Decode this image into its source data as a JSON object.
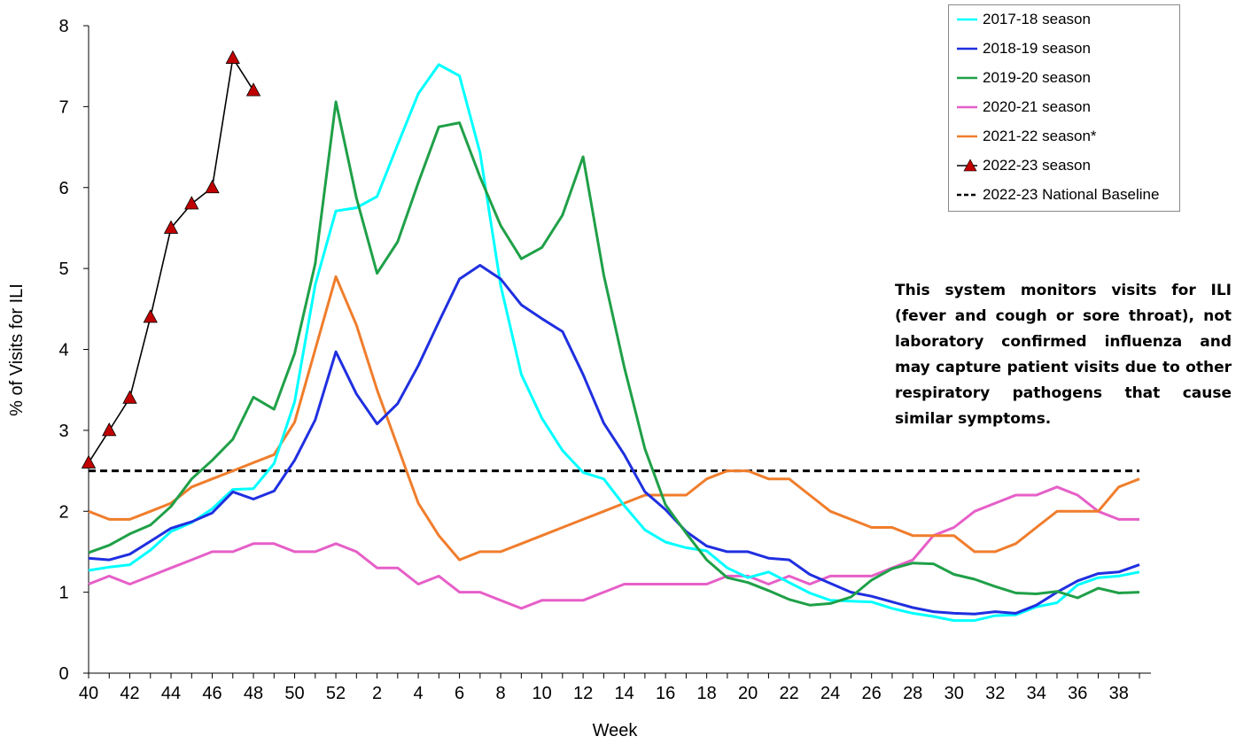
{
  "chart_data": {
    "type": "line",
    "xlabel": "Week",
    "ylabel": "% of Visits for ILI",
    "ylim": [
      0,
      8
    ],
    "yticks": [
      "0",
      "1",
      "2",
      "3",
      "4",
      "5",
      "6",
      "7",
      "8"
    ],
    "week_order": [
      40,
      41,
      42,
      43,
      44,
      45,
      46,
      47,
      48,
      49,
      50,
      51,
      52,
      1,
      2,
      3,
      4,
      5,
      6,
      7,
      8,
      9,
      10,
      11,
      12,
      13,
      14,
      15,
      16,
      17,
      18,
      19,
      20,
      21,
      22,
      23,
      24,
      25,
      26,
      27,
      28,
      29,
      30,
      31,
      32,
      33,
      34,
      35,
      36,
      37,
      38,
      39
    ],
    "xtick_labels": [
      "40",
      "42",
      "44",
      "46",
      "48",
      "50",
      "52",
      "2",
      "4",
      "6",
      "8",
      "10",
      "12",
      "14",
      "16",
      "18",
      "20",
      "22",
      "24",
      "26",
      "28",
      "30",
      "32",
      "34",
      "36",
      "38"
    ],
    "legend_position": "top-right",
    "series": [
      {
        "name": "2017-18 season",
        "color": "#00ffff",
        "marker": "none",
        "dashed": false,
        "values": [
          1.27,
          1.31,
          1.34,
          1.52,
          1.75,
          1.86,
          2.03,
          2.27,
          2.28,
          2.59,
          3.35,
          4.8,
          5.71,
          5.75,
          5.89,
          6.53,
          7.16,
          7.52,
          7.38,
          6.43,
          4.79,
          3.69,
          3.15,
          2.75,
          2.48,
          2.4,
          2.07,
          1.77,
          1.62,
          1.55,
          1.51,
          1.3,
          1.18,
          1.25,
          1.12,
          0.99,
          0.9,
          0.89,
          0.88,
          0.8,
          0.74,
          0.7,
          0.65,
          0.65,
          0.71,
          0.72,
          0.82,
          0.87,
          1.09,
          1.18,
          1.2,
          1.25
        ]
      },
      {
        "name": "2018-19 season",
        "color": "#1f2fe0",
        "marker": "none",
        "dashed": false,
        "values": [
          1.42,
          1.4,
          1.47,
          1.63,
          1.79,
          1.87,
          1.98,
          2.24,
          2.15,
          2.25,
          2.63,
          3.13,
          3.97,
          3.45,
          3.08,
          3.33,
          3.8,
          4.34,
          4.87,
          5.04,
          4.87,
          4.55,
          4.38,
          4.22,
          3.69,
          3.09,
          2.7,
          2.24,
          2.02,
          1.75,
          1.57,
          1.5,
          1.5,
          1.42,
          1.4,
          1.22,
          1.11,
          1.0,
          0.95,
          0.88,
          0.81,
          0.76,
          0.74,
          0.73,
          0.76,
          0.74,
          0.84,
          1.0,
          1.14,
          1.23,
          1.25,
          1.34
        ]
      },
      {
        "name": "2019-20 season",
        "color": "#1fa048",
        "marker": "none",
        "dashed": false,
        "values": [
          1.49,
          1.58,
          1.72,
          1.83,
          2.06,
          2.4,
          2.63,
          2.89,
          3.41,
          3.26,
          3.95,
          5.06,
          7.06,
          5.87,
          4.94,
          5.33,
          6.06,
          6.75,
          6.8,
          6.13,
          5.53,
          5.12,
          5.26,
          5.66,
          6.38,
          4.92,
          3.78,
          2.77,
          2.08,
          1.73,
          1.4,
          1.18,
          1.12,
          1.02,
          0.91,
          0.84,
          0.86,
          0.94,
          1.15,
          1.29,
          1.36,
          1.35,
          1.22,
          1.16,
          1.07,
          0.99,
          0.98,
          1.01,
          0.93,
          1.05,
          0.99,
          1.0
        ]
      },
      {
        "name": "2020-21 season",
        "color": "#e65fc8",
        "marker": "none",
        "dashed": false,
        "values": [
          1.1,
          1.2,
          1.1,
          1.2,
          1.3,
          1.4,
          1.5,
          1.5,
          1.6,
          1.6,
          1.5,
          1.5,
          1.6,
          1.5,
          1.3,
          1.3,
          1.1,
          1.2,
          1.0,
          1.0,
          0.9,
          0.8,
          0.9,
          0.9,
          0.9,
          1.0,
          1.1,
          1.1,
          1.1,
          1.1,
          1.1,
          1.2,
          1.2,
          1.1,
          1.2,
          1.1,
          1.2,
          1.2,
          1.2,
          1.3,
          1.4,
          1.7,
          1.8,
          2.0,
          2.1,
          2.2,
          2.2,
          2.3,
          2.2,
          2.0,
          1.9,
          1.9
        ]
      },
      {
        "name": "2021-22 season*",
        "color": "#f07d2c",
        "marker": "none",
        "dashed": false,
        "values": [
          2.0,
          1.9,
          1.9,
          2.0,
          2.1,
          2.3,
          2.4,
          2.5,
          2.6,
          2.7,
          3.1,
          4.0,
          4.9,
          4.3,
          3.5,
          2.8,
          2.1,
          1.7,
          1.4,
          1.5,
          1.5,
          1.6,
          1.7,
          1.8,
          1.9,
          2.0,
          2.1,
          2.2,
          2.2,
          2.2,
          2.4,
          2.5,
          2.5,
          2.4,
          2.4,
          2.2,
          2.0,
          1.9,
          1.8,
          1.8,
          1.7,
          1.7,
          1.7,
          1.5,
          1.5,
          1.6,
          1.8,
          2.0,
          2.0,
          2.0,
          2.3,
          2.4
        ]
      },
      {
        "name": "2022-23 season",
        "color": "#000000",
        "marker": "triangle",
        "marker_color": "#c00000",
        "dashed": false,
        "values": [
          2.6,
          3.0,
          3.4,
          4.4,
          5.5,
          5.8,
          6.0,
          7.6,
          7.2
        ]
      },
      {
        "name": "2022-23 National Baseline",
        "color": "#000000",
        "marker": "none",
        "dashed": true,
        "values": [
          2.5,
          2.5,
          2.5,
          2.5,
          2.5,
          2.5,
          2.5,
          2.5,
          2.5,
          2.5,
          2.5,
          2.5,
          2.5,
          2.5,
          2.5,
          2.5,
          2.5,
          2.5,
          2.5,
          2.5,
          2.5,
          2.5,
          2.5,
          2.5,
          2.5,
          2.5,
          2.5,
          2.5,
          2.5,
          2.5,
          2.5,
          2.5,
          2.5,
          2.5,
          2.5,
          2.5,
          2.5,
          2.5,
          2.5,
          2.5,
          2.5,
          2.5,
          2.5,
          2.5,
          2.5,
          2.5,
          2.5,
          2.5,
          2.5,
          2.5,
          2.5,
          2.5
        ]
      }
    ]
  },
  "note": "This system monitors visits for ILI (fever and cough or sore throat), not laboratory confirmed influenza and may capture patient visits due to other respiratory pathogens that cause similar symptoms."
}
